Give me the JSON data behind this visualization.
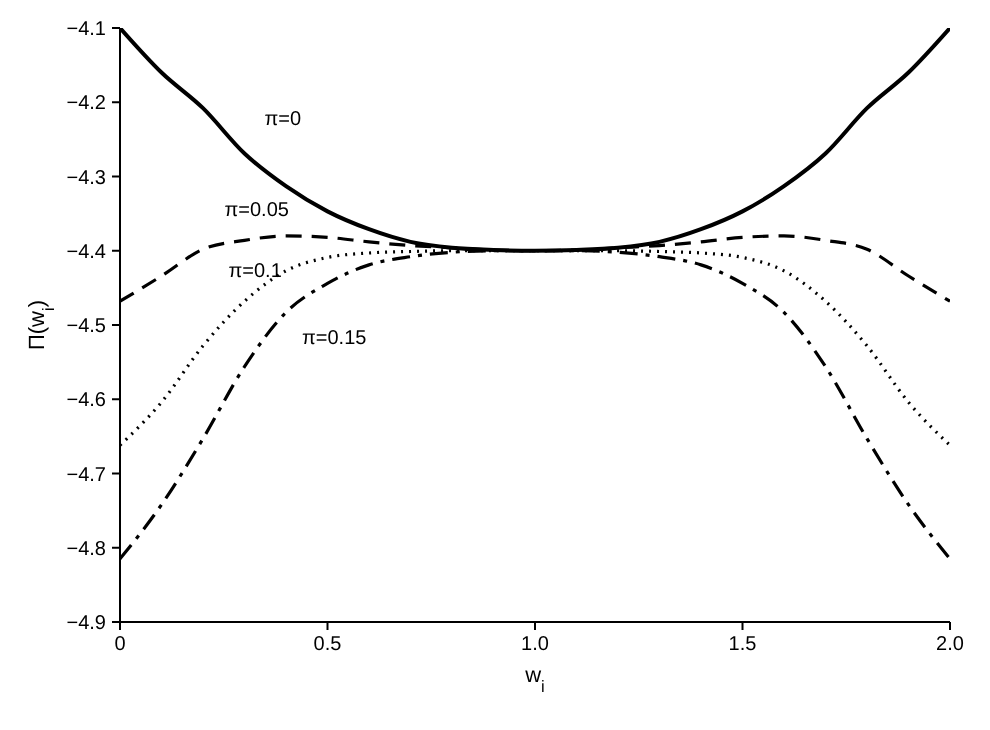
{
  "chart_data": {
    "type": "line",
    "xlabel": "w$_{i}$",
    "ylabel": "Π(w$_{i}$)",
    "x": [
      0,
      0.1,
      0.2,
      0.3,
      0.4,
      0.5,
      0.6,
      0.7,
      0.8,
      0.9,
      1.0,
      1.1,
      1.2,
      1.3,
      1.4,
      1.5,
      1.6,
      1.7,
      1.8,
      1.9,
      2.0
    ],
    "series": [
      {
        "name": "π=0",
        "color": "#000000",
        "line_style": "solid",
        "values": [
          -4.1,
          -4.16,
          -4.208,
          -4.269,
          -4.313,
          -4.347,
          -4.371,
          -4.388,
          -4.396,
          -4.399,
          -4.4,
          -4.399,
          -4.396,
          -4.388,
          -4.371,
          -4.347,
          -4.313,
          -4.269,
          -4.208,
          -4.16,
          -4.1
        ]
      },
      {
        "name": "π=0.05",
        "color": "#000000",
        "line_style": "dashed",
        "values": [
          -4.468,
          -4.434,
          -4.398,
          -4.386,
          -4.38,
          -4.382,
          -4.388,
          -4.393,
          -4.396,
          -4.399,
          -4.4,
          -4.399,
          -4.396,
          -4.393,
          -4.388,
          -4.382,
          -4.38,
          -4.386,
          -4.398,
          -4.434,
          -4.468
        ]
      },
      {
        "name": "π=0.1",
        "color": "#000000",
        "line_style": "dotted",
        "values": [
          -4.662,
          -4.604,
          -4.528,
          -4.468,
          -4.427,
          -4.409,
          -4.403,
          -4.401,
          -4.4,
          -4.4,
          -4.4,
          -4.4,
          -4.4,
          -4.401,
          -4.403,
          -4.409,
          -4.427,
          -4.468,
          -4.528,
          -4.604,
          -4.662
        ]
      },
      {
        "name": "π=0.15",
        "color": "#000000",
        "line_style": "dashdot",
        "values": [
          -4.815,
          -4.742,
          -4.653,
          -4.556,
          -4.483,
          -4.444,
          -4.419,
          -4.408,
          -4.402,
          -4.4,
          -4.4,
          -4.4,
          -4.402,
          -4.408,
          -4.419,
          -4.444,
          -4.483,
          -4.556,
          -4.653,
          -4.742,
          -4.815
        ]
      }
    ],
    "xlim": [
      0,
      2
    ],
    "xticks": [
      0,
      0.5,
      {
        "value": 1,
        "label": "1.0"
      },
      1.5,
      {
        "value": 2,
        "label": "2.0"
      }
    ],
    "ylim": [
      -4.9,
      -4.1
    ],
    "yticks": [
      -4.9,
      -4.8,
      -4.7,
      -4.6,
      -4.5,
      -4.4,
      -4.3,
      -4.2,
      -4.1
    ],
    "grid": false,
    "legend": false
  }
}
